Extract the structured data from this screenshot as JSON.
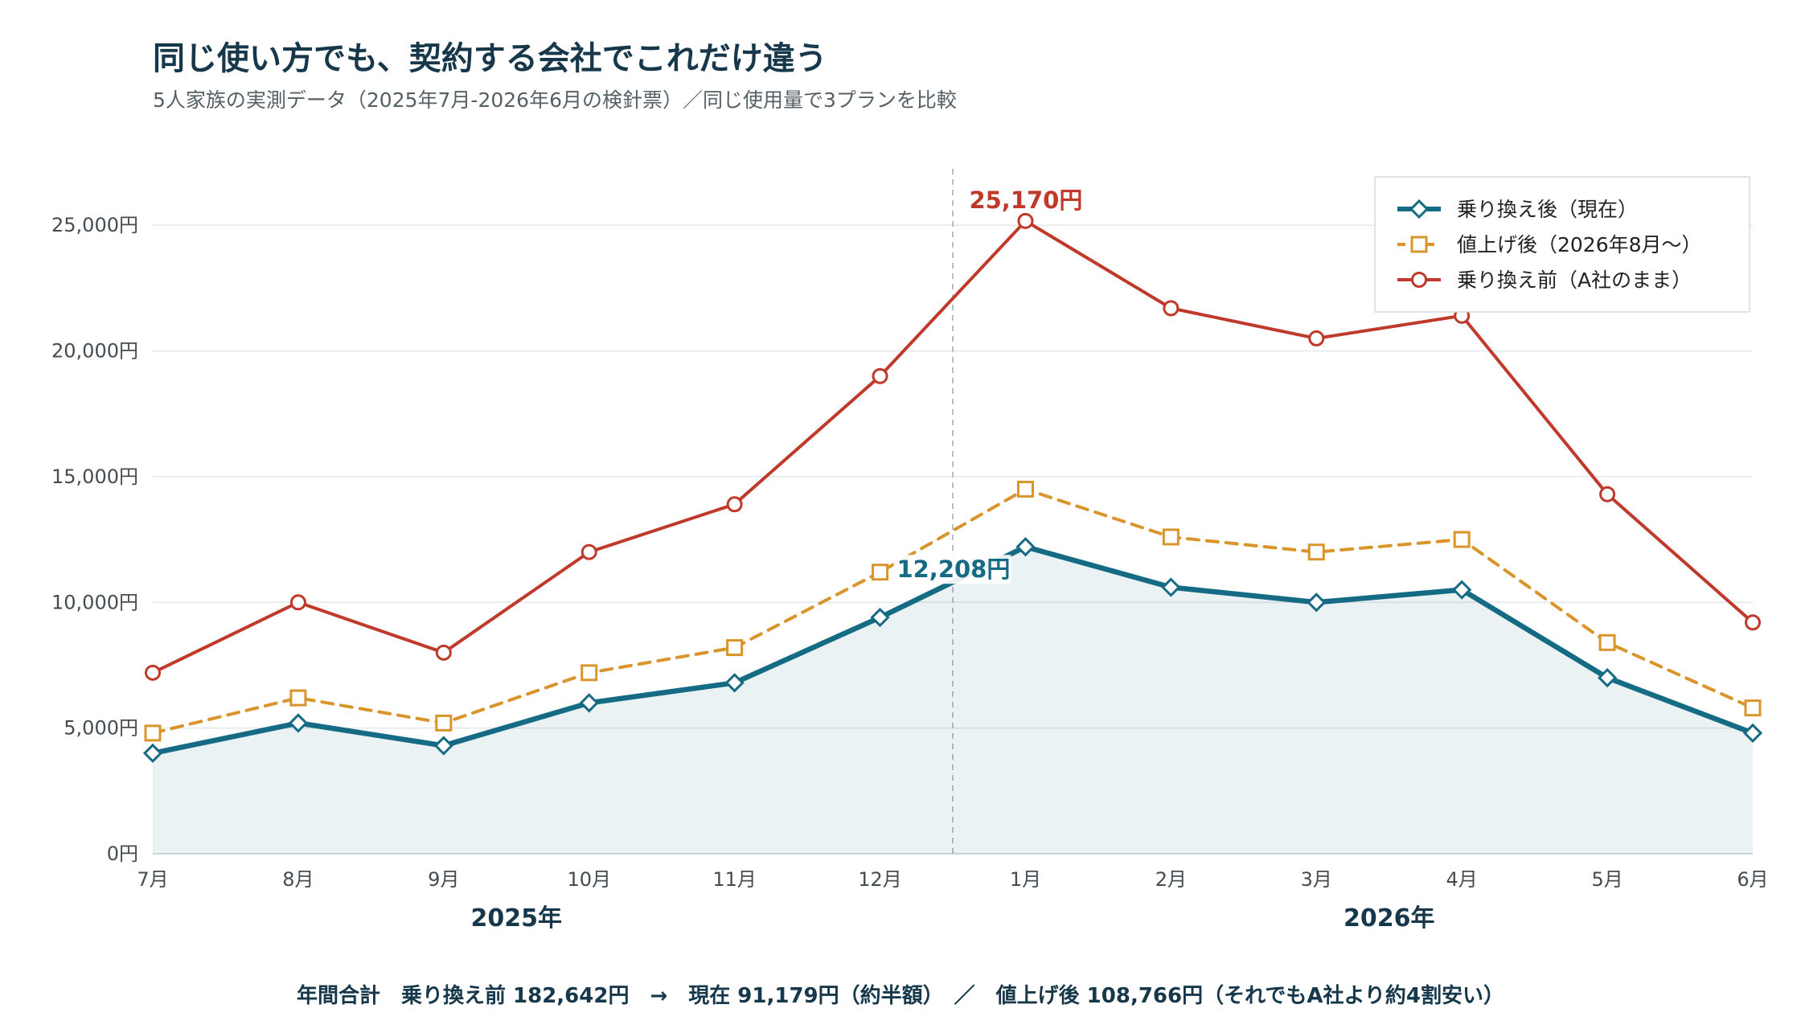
{
  "title": "同じ使い方でも、契約する会社でこれだけ違う",
  "subtitle": "5人家族の実測データ（2025年7月-2026年6月の検針票）／同じ使用量で3プランを比較",
  "footer": "年間合計　乗り換え前 182,642円　→　現在 91,179円（約半額）　／　値上げ後 108,766円（それでもA社より約4割安い）",
  "chart_data": {
    "type": "line",
    "categories": [
      "7月",
      "8月",
      "9月",
      "10月",
      "11月",
      "12月",
      "1月",
      "2月",
      "3月",
      "4月",
      "5月",
      "6月"
    ],
    "year_labels": [
      {
        "label": "2025年",
        "center_index": 2.5
      },
      {
        "label": "2026年",
        "center_index": 8.5
      }
    ],
    "y_ticks": [
      {
        "value": 0,
        "label": "0円"
      },
      {
        "value": 5000,
        "label": "5,000円"
      },
      {
        "value": 10000,
        "label": "10,000円"
      },
      {
        "value": 15000,
        "label": "15,000円"
      },
      {
        "value": 20000,
        "label": "20,000円"
      },
      {
        "value": 25000,
        "label": "25,000円"
      }
    ],
    "ylim": [
      0,
      27500
    ],
    "grid": true,
    "legend_position": "top-right",
    "year_divider_index": 5.5,
    "series": [
      {
        "name": "乗り換え後（現在）",
        "color": "#156b84",
        "marker": "diamond",
        "style": "solid",
        "fill_area": true,
        "values": [
          4000,
          5200,
          4300,
          6000,
          6800,
          9400,
          12208,
          10600,
          10000,
          10500,
          7000,
          4800
        ]
      },
      {
        "name": "値上げ後（2026年8月〜）",
        "color": "#d9952b",
        "marker": "square",
        "style": "dashed",
        "fill_area": false,
        "values": [
          4800,
          6200,
          5200,
          7200,
          8200,
          11200,
          14500,
          12600,
          12000,
          12500,
          8400,
          5800
        ]
      },
      {
        "name": "乗り換え前（A社のまま）",
        "color": "#bf3a2b",
        "marker": "circle",
        "style": "solid",
        "fill_area": false,
        "values": [
          7200,
          10000,
          8000,
          12000,
          13900,
          19000,
          25170,
          21700,
          20500,
          21400,
          14300,
          9200
        ]
      }
    ],
    "annotations": [
      {
        "text": "25,170円",
        "series_index": 2,
        "point_index": 6,
        "color": "#bf3a2b"
      },
      {
        "text": "12,208円",
        "series_index": 0,
        "point_index": 6,
        "color": "#156b84"
      }
    ]
  }
}
